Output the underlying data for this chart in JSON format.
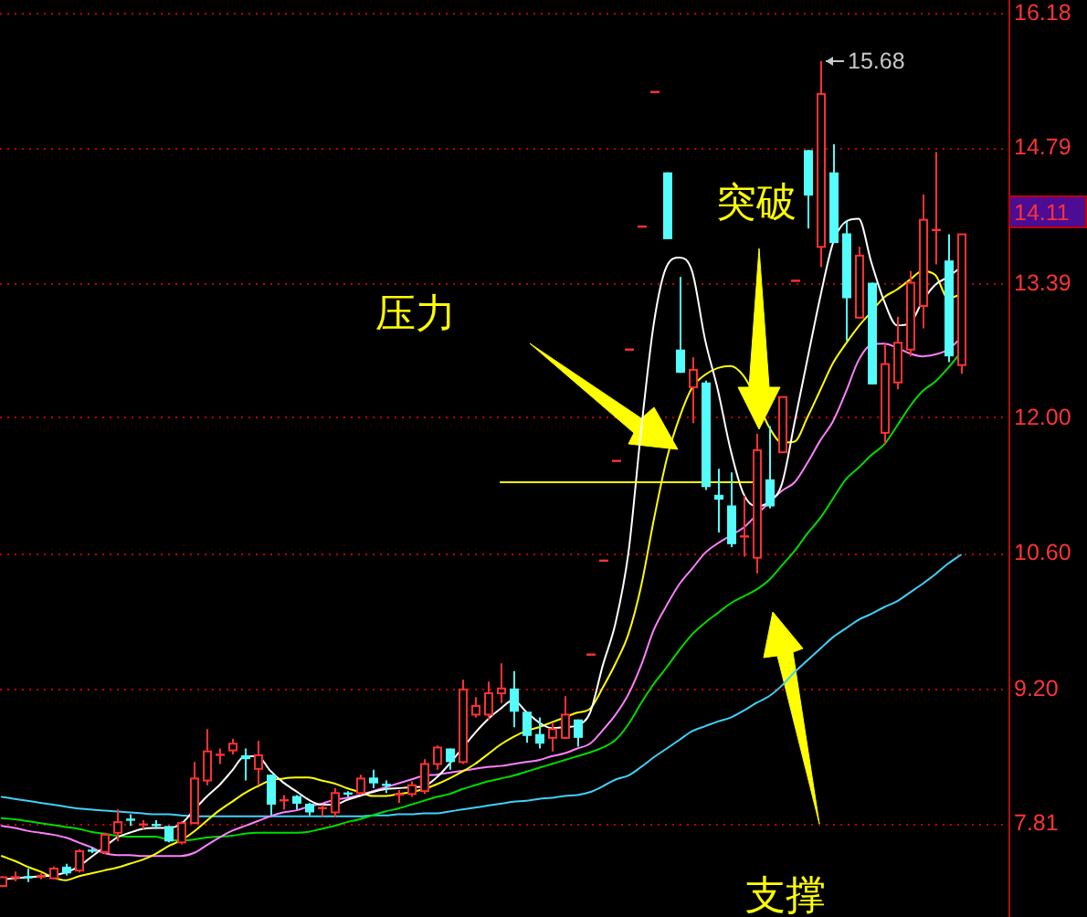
{
  "chart_data": {
    "type": "candlestick",
    "categories": [
      null,
      null,
      null,
      null,
      null,
      null,
      null,
      null,
      null,
      null,
      null,
      null,
      null,
      null,
      null,
      null,
      null,
      null,
      null,
      null,
      null,
      null,
      null,
      null,
      null,
      null,
      null,
      null,
      null,
      null,
      null,
      null,
      null,
      null,
      null,
      null,
      null,
      null,
      null,
      null,
      null,
      null,
      null,
      null,
      null,
      null,
      null,
      null,
      null,
      null,
      null,
      null,
      null,
      null,
      null,
      null,
      null,
      null,
      null,
      null,
      null,
      null,
      null,
      null,
      null,
      null,
      null,
      null,
      null,
      null,
      null,
      null,
      null,
      null,
      null,
      null
    ],
    "ohlc": [
      [
        7.16,
        7.26,
        7.15,
        7.25
      ],
      [
        7.24,
        7.31,
        7.21,
        7.26
      ],
      [
        7.26,
        7.34,
        7.2,
        7.24
      ],
      [
        7.25,
        7.29,
        7.23,
        7.27
      ],
      [
        7.24,
        7.36,
        7.23,
        7.34
      ],
      [
        7.36,
        7.39,
        7.27,
        7.29
      ],
      [
        7.32,
        7.54,
        7.3,
        7.52
      ],
      [
        7.53,
        7.56,
        7.5,
        7.52
      ],
      [
        7.51,
        7.71,
        7.49,
        7.69
      ],
      [
        7.71,
        7.95,
        7.62,
        7.82
      ],
      [
        7.85,
        7.9,
        7.78,
        7.84
      ],
      [
        7.79,
        7.84,
        7.75,
        7.8
      ],
      [
        7.8,
        7.84,
        7.75,
        7.78
      ],
      [
        7.78,
        7.78,
        7.61,
        7.62
      ],
      [
        7.61,
        7.83,
        7.59,
        7.81
      ],
      [
        7.81,
        8.44,
        7.8,
        8.27
      ],
      [
        8.25,
        8.78,
        8.2,
        8.55
      ],
      [
        8.51,
        8.58,
        8.42,
        8.52
      ],
      [
        8.56,
        8.68,
        8.52,
        8.63
      ],
      [
        8.51,
        8.58,
        8.25,
        8.47
      ],
      [
        8.37,
        8.66,
        8.2,
        8.51
      ],
      [
        8.31,
        8.31,
        7.89,
        8.0
      ],
      [
        8.04,
        8.1,
        7.95,
        8.05
      ],
      [
        8.09,
        8.1,
        7.95,
        8.01
      ],
      [
        8.01,
        8.02,
        7.89,
        7.92
      ],
      [
        7.96,
        8.0,
        7.88,
        7.97
      ],
      [
        7.92,
        8.17,
        7.87,
        8.12
      ],
      [
        8.12,
        8.14,
        8.08,
        8.11
      ],
      [
        8.12,
        8.31,
        8.1,
        8.27
      ],
      [
        8.28,
        8.36,
        8.17,
        8.22
      ],
      [
        8.21,
        8.25,
        8.12,
        8.2
      ],
      [
        8.1,
        8.15,
        8.02,
        8.11
      ],
      [
        8.11,
        8.24,
        8.08,
        8.2
      ],
      [
        8.14,
        8.47,
        8.11,
        8.42
      ],
      [
        8.42,
        8.61,
        8.36,
        8.59
      ],
      [
        8.58,
        8.58,
        8.36,
        8.44
      ],
      [
        8.44,
        9.29,
        8.42,
        9.19
      ],
      [
        8.93,
        9.11,
        8.9,
        9.02
      ],
      [
        8.93,
        9.27,
        8.88,
        9.15
      ],
      [
        9.15,
        9.46,
        9.05,
        9.2
      ],
      [
        9.2,
        9.38,
        8.8,
        8.96
      ],
      [
        8.96,
        8.96,
        8.64,
        8.71
      ],
      [
        8.73,
        8.9,
        8.58,
        8.63
      ],
      [
        8.69,
        8.85,
        8.55,
        8.78
      ],
      [
        8.69,
        9.12,
        8.68,
        8.93
      ],
      [
        8.88,
        8.88,
        8.6,
        8.69
      ],
      [
        9.55,
        9.55,
        9.55,
        9.55
      ],
      [
        10.52,
        10.52,
        10.52,
        10.52
      ],
      [
        11.55,
        11.55,
        11.55,
        11.55
      ],
      [
        12.7,
        12.7,
        12.7,
        12.7
      ],
      [
        13.97,
        13.97,
        13.97,
        13.97
      ],
      [
        15.36,
        15.36,
        15.36,
        15.36
      ],
      [
        14.53,
        14.53,
        13.84,
        13.84
      ],
      [
        12.7,
        13.45,
        12.46,
        12.46
      ],
      [
        12.31,
        12.62,
        11.94,
        12.49
      ],
      [
        12.36,
        12.38,
        11.25,
        11.28
      ],
      [
        11.2,
        11.47,
        10.81,
        11.15
      ],
      [
        11.09,
        11.43,
        10.66,
        10.69
      ],
      [
        10.76,
        11.19,
        10.56,
        10.78
      ],
      [
        10.55,
        11.83,
        10.39,
        11.66
      ],
      [
        11.36,
        11.91,
        11.06,
        11.08
      ],
      [
        11.64,
        12.21,
        11.64,
        12.21
      ],
      [
        13.41,
        13.41,
        13.41,
        13.41
      ],
      [
        14.76,
        14.76,
        13.95,
        14.29
      ],
      [
        13.76,
        15.68,
        13.55,
        15.34
      ],
      [
        14.53,
        14.82,
        13.8,
        13.8
      ],
      [
        13.9,
        14.02,
        12.79,
        13.23
      ],
      [
        13.03,
        13.76,
        13.03,
        13.67
      ],
      [
        13.39,
        13.39,
        12.34,
        12.34
      ],
      [
        11.84,
        12.76,
        11.72,
        12.55
      ],
      [
        12.36,
        13.04,
        12.29,
        12.77
      ],
      [
        12.7,
        13.51,
        12.63,
        13.39
      ],
      [
        13.15,
        14.3,
        12.92,
        14.04
      ],
      [
        13.93,
        14.74,
        13.58,
        13.94
      ],
      [
        13.62,
        13.89,
        12.57,
        12.63
      ],
      [
        12.54,
        13.89,
        12.45,
        13.89
      ]
    ],
    "colors": [
      "#ff3232",
      "#ff3232",
      "#54fcfc",
      "#ff3232",
      "#ff3232",
      "#54fcfc",
      "#ff3232",
      "#54fcfc",
      "#ff3232",
      "#ff3232",
      "#54fcfc",
      "#ff3232",
      "#54fcfc",
      "#54fcfc",
      "#ff3232",
      "#ff3232",
      "#ff3232",
      "#ff3232",
      "#ff3232",
      "#54fcfc",
      "#ff3232",
      "#54fcfc",
      "#ff3232",
      "#54fcfc",
      "#54fcfc",
      "#ff3232",
      "#ff3232",
      "#54fcfc",
      "#ff3232",
      "#54fcfc",
      "#54fcfc",
      "#ff3232",
      "#ff3232",
      "#ff3232",
      "#ff3232",
      "#54fcfc",
      "#ff3232",
      "#ff3232",
      "#ff3232",
      "#ff3232",
      "#54fcfc",
      "#54fcfc",
      "#54fcfc",
      "#ff3232",
      "#ff3232",
      "#54fcfc",
      "#ff3232",
      "#ff3232",
      "#ff3232",
      "#ff3232",
      "#ff3232",
      "#ff3232",
      "#54fcfc",
      "#54fcfc",
      "#ff3232",
      "#54fcfc",
      "#54fcfc",
      "#54fcfc",
      "#ff3232",
      "#ff3232",
      "#54fcfc",
      "#ff3232",
      "#ff3232",
      "#54fcfc",
      "#ff3232",
      "#54fcfc",
      "#54fcfc",
      "#ff3232",
      "#54fcfc",
      "#ff3232",
      "#ff3232",
      "#ff3232",
      "#ff3232",
      "#ff3232",
      "#54fcfc",
      "#ff3232"
    ],
    "series": [
      {
        "type": "line",
        "color": "#40d0f8",
        "values": [
          8.08,
          8.06,
          8.04,
          8.02,
          8.0,
          7.98,
          7.96,
          7.95,
          7.94,
          7.93,
          7.92,
          7.91,
          7.9,
          7.9,
          7.89,
          7.88,
          7.88,
          7.88,
          7.88,
          7.88,
          7.88,
          7.88,
          7.88,
          7.88,
          7.88,
          7.88,
          7.88,
          7.88,
          7.88,
          7.89,
          7.89,
          7.9,
          7.9,
          7.91,
          7.91,
          7.93,
          7.95,
          7.97,
          7.99,
          8.01,
          8.03,
          8.04,
          8.06,
          8.07,
          8.09,
          8.1,
          8.13,
          8.19,
          8.26,
          8.3,
          8.39,
          8.49,
          8.58,
          8.67,
          8.76,
          8.81,
          8.86,
          8.9,
          8.97,
          9.05,
          9.12,
          9.23,
          9.37,
          9.49,
          9.61,
          9.73,
          9.82,
          9.91,
          9.97,
          10.04,
          10.1,
          10.19,
          10.28,
          10.38,
          10.49,
          10.58
        ]
      },
      {
        "type": "line",
        "color": "#00dc00",
        "values": [
          7.86,
          7.85,
          7.83,
          7.81,
          7.79,
          7.77,
          7.75,
          7.72,
          7.7,
          7.68,
          7.67,
          7.67,
          7.67,
          7.64,
          7.63,
          7.64,
          7.66,
          7.67,
          7.68,
          7.7,
          7.71,
          7.71,
          7.71,
          7.71,
          7.72,
          7.75,
          7.78,
          7.82,
          7.85,
          7.89,
          7.93,
          7.96,
          8.0,
          8.04,
          8.08,
          8.11,
          8.16,
          8.2,
          8.24,
          8.27,
          8.3,
          8.34,
          8.38,
          8.42,
          8.46,
          8.5,
          8.54,
          8.59,
          8.67,
          8.83,
          9.05,
          9.25,
          9.42,
          9.6,
          9.76,
          9.88,
          9.98,
          10.08,
          10.15,
          10.22,
          10.32,
          10.47,
          10.62,
          10.8,
          10.96,
          11.16,
          11.36,
          11.48,
          11.61,
          11.72,
          11.91,
          12.11,
          12.27,
          12.37,
          12.51,
          12.67
        ]
      },
      {
        "type": "line",
        "color": "#ff80ff",
        "values": [
          7.78,
          7.76,
          7.73,
          7.71,
          7.69,
          7.66,
          7.61,
          7.56,
          7.5,
          7.48,
          7.48,
          7.47,
          7.47,
          7.47,
          7.47,
          7.5,
          7.58,
          7.66,
          7.73,
          7.78,
          7.83,
          7.88,
          7.92,
          7.94,
          7.98,
          8.01,
          8.05,
          8.07,
          8.1,
          8.14,
          8.18,
          8.22,
          8.26,
          8.3,
          8.31,
          8.33,
          8.35,
          8.37,
          8.39,
          8.4,
          8.42,
          8.44,
          8.46,
          8.5,
          8.53,
          8.58,
          8.63,
          8.77,
          8.93,
          9.14,
          9.44,
          9.81,
          10.06,
          10.28,
          10.44,
          10.6,
          10.7,
          10.78,
          10.86,
          10.99,
          11.12,
          11.24,
          11.33,
          11.53,
          11.76,
          11.96,
          12.26,
          12.59,
          12.75,
          12.76,
          12.72,
          12.66,
          12.63,
          12.65,
          12.7,
          12.82
        ]
      },
      {
        "type": "line",
        "color": "#ffff00",
        "values": [
          7.47,
          7.42,
          7.36,
          7.31,
          7.25,
          7.22,
          7.26,
          7.29,
          7.32,
          7.35,
          7.39,
          7.43,
          7.49,
          7.57,
          7.63,
          7.72,
          7.83,
          7.94,
          8.03,
          8.12,
          8.19,
          8.25,
          8.27,
          8.28,
          8.28,
          8.25,
          8.22,
          8.17,
          8.13,
          8.09,
          8.09,
          8.11,
          8.13,
          8.16,
          8.21,
          8.27,
          8.34,
          8.42,
          8.52,
          8.62,
          8.7,
          8.76,
          8.8,
          8.85,
          8.9,
          8.95,
          8.99,
          9.21,
          9.46,
          9.76,
          10.26,
          10.95,
          11.57,
          12.0,
          12.31,
          12.44,
          12.51,
          12.53,
          12.43,
          12.19,
          11.9,
          11.74,
          11.75,
          12.0,
          12.28,
          12.56,
          12.76,
          12.94,
          13.09,
          13.24,
          13.32,
          13.42,
          13.51,
          13.47,
          13.23,
          13.27
        ]
      },
      {
        "type": "line",
        "color": "#ffffff",
        "values": [
          7.23,
          7.24,
          7.25,
          7.26,
          7.27,
          7.3,
          7.36,
          7.46,
          7.56,
          7.66,
          7.71,
          7.75,
          7.76,
          7.76,
          7.8,
          7.94,
          8.08,
          8.2,
          8.35,
          8.5,
          8.5,
          8.35,
          8.23,
          8.14,
          8.05,
          8.0,
          8.0,
          8.05,
          8.09,
          8.13,
          8.16,
          8.17,
          8.18,
          8.19,
          8.28,
          8.42,
          8.58,
          8.74,
          8.88,
          8.99,
          9.08,
          8.96,
          8.85,
          8.79,
          8.8,
          8.82,
          8.95,
          9.44,
          9.88,
          10.6,
          11.87,
          12.98,
          13.56,
          13.65,
          13.5,
          12.8,
          12.28,
          11.66,
          11.21,
          11.08,
          11.13,
          11.31,
          11.95,
          12.6,
          13.24,
          13.8,
          14.02,
          14.05,
          13.6,
          13.2,
          12.95,
          12.97,
          13.2,
          13.37,
          13.45,
          13.55
        ]
      },
      {
        "type": "line",
        "color": "#ffff00",
        "values": [
          null,
          null,
          null,
          null,
          null,
          null,
          null,
          null,
          null,
          null,
          null,
          null,
          null,
          null,
          null,
          null,
          null,
          null,
          null,
          null,
          null,
          null,
          null,
          null,
          null,
          null,
          null,
          null,
          null,
          null,
          null,
          null,
          null,
          null,
          null,
          null,
          null,
          null,
          null,
          11.33,
          11.33,
          11.33,
          11.33,
          11.33,
          11.33,
          11.33,
          11.33,
          11.33,
          11.33,
          11.33,
          11.33,
          11.33,
          11.33,
          11.33,
          11.33,
          11.33,
          11.33,
          11.33,
          11.33,
          11.33,
          null,
          null,
          null,
          null,
          null,
          null,
          null,
          null,
          null,
          null,
          null,
          null,
          null,
          null,
          null,
          null
        ]
      }
    ],
    "ylim": [
      6.84,
      16.31
    ],
    "yticks": [
      7.81,
      {
        "value": 9.2,
        "label": "9.20"
      },
      {
        "value": 10.6,
        "label": "10.60"
      },
      {
        "value": 12,
        "label": "12.00"
      },
      13.39,
      14.79,
      16.18
    ],
    "grid": "y",
    "tick_labels": "y",
    "annotations": [
      "15.68",
      "14.11",
      "压力",
      "突破",
      "支撑"
    ]
  }
}
